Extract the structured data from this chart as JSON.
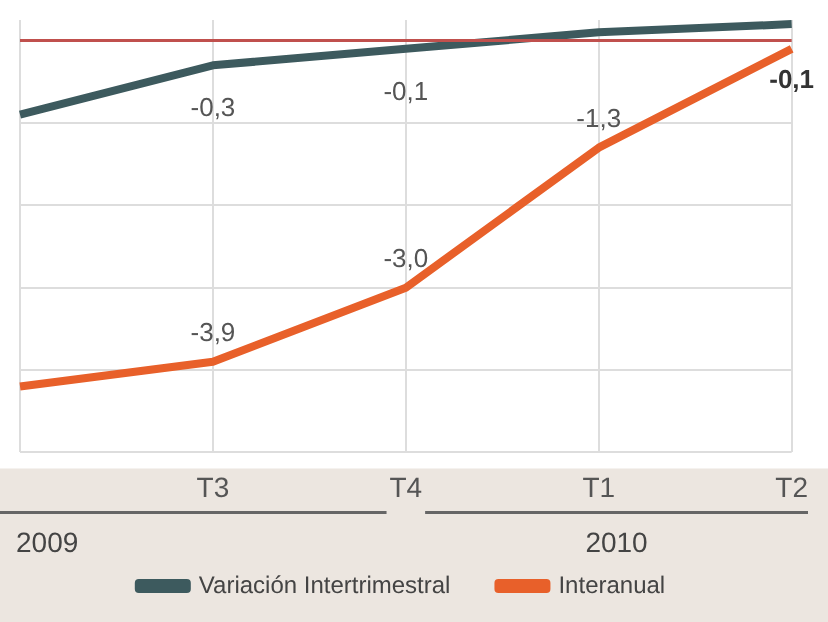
{
  "chart_data": {
    "type": "line",
    "categories": [
      null,
      "T3",
      "T4",
      "T1",
      "T2"
    ],
    "series": [
      {
        "name": "Variación Intertrimestral",
        "color": "#3d5a5e",
        "values": [
          -0.9,
          -0.3,
          -0.1,
          0.1,
          0.2
        ],
        "value_labels": [
          null,
          "-0,3",
          "-0,1",
          null,
          null
        ]
      },
      {
        "name": "Interanual",
        "color": "#e8602a",
        "values": [
          -4.2,
          -3.9,
          -3.0,
          -1.3,
          -0.1
        ],
        "value_labels": [
          null,
          "-3,9",
          "-3,0",
          "-1,3",
          "-0,1"
        ]
      }
    ],
    "ylim": [
      -5,
      0.25
    ],
    "yticks": [
      {
        "value": -5,
        "label": null
      },
      {
        "value": -4,
        "label": null
      },
      {
        "value": -3,
        "label": null
      },
      {
        "value": -2,
        "label": null
      },
      {
        "value": -1,
        "label": null
      },
      {
        "value": 0,
        "label": null
      }
    ],
    "ref_lines": [
      {
        "axis": "y",
        "value": 0,
        "color": "#c0504d"
      }
    ],
    "annotations": [
      "2009",
      "2010"
    ],
    "grid": true,
    "tick_labels": "x",
    "legend": "bottom",
    "line_style": "solid"
  }
}
